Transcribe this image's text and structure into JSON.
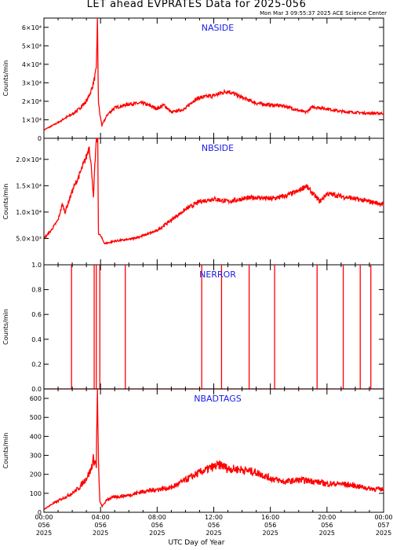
{
  "title": "LET ahead EVPRATES Data for 2025-056",
  "subtitle": "Mon Mar  3 09:55:37 2025 ACE Science Center",
  "colors": {
    "series": "#ff0000",
    "panel_title": "#1a1ae6",
    "axes": "#000000"
  },
  "chart_data": {
    "type": "line",
    "xlabel": "UTC Day of Year",
    "x_range_hours": [
      0,
      24
    ],
    "x_tick_labels": [
      [
        "00:00",
        "056",
        "2025"
      ],
      [
        "04:00",
        "056",
        "2025"
      ],
      [
        "08:00",
        "056",
        "2025"
      ],
      [
        "12:00",
        "056",
        "2025"
      ],
      [
        "16:00",
        "056",
        "2025"
      ],
      [
        "20:00",
        "056",
        "2025"
      ],
      [
        "00:00",
        "057",
        "2025"
      ]
    ],
    "panels": [
      {
        "name": "NASIDE",
        "ylabel": "Counts/min",
        "ylim": [
          0,
          65000
        ],
        "yticks": [
          0,
          10000,
          20000,
          30000,
          40000,
          50000,
          60000
        ],
        "ytick_labels": [
          "0",
          "1×10⁴",
          "2×10⁴",
          "3×10⁴",
          "4×10⁴",
          "5×10⁴",
          "6×10⁴"
        ],
        "points": [
          [
            0,
            4500
          ],
          [
            0.5,
            6500
          ],
          [
            1,
            8500
          ],
          [
            1.5,
            11000
          ],
          [
            2,
            13000
          ],
          [
            2.5,
            16000
          ],
          [
            3,
            20000
          ],
          [
            3.3,
            25000
          ],
          [
            3.5,
            30000
          ],
          [
            3.7,
            37000
          ],
          [
            3.78,
            64000
          ],
          [
            3.85,
            20000
          ],
          [
            3.95,
            13000
          ],
          [
            4.1,
            7000
          ],
          [
            4.5,
            13000
          ],
          [
            5,
            16500
          ],
          [
            6,
            18500
          ],
          [
            7,
            19000
          ],
          [
            8,
            16000
          ],
          [
            8.5,
            18000
          ],
          [
            9,
            14000
          ],
          [
            10,
            16000
          ],
          [
            10.5,
            20000
          ],
          [
            11,
            22000
          ],
          [
            12,
            23000
          ],
          [
            12.5,
            24500
          ],
          [
            13,
            25500
          ],
          [
            14,
            22000
          ],
          [
            15,
            19000
          ],
          [
            16,
            18000
          ],
          [
            17,
            17500
          ],
          [
            18,
            15000
          ],
          [
            18.5,
            14000
          ],
          [
            19,
            17000
          ],
          [
            20,
            16000
          ],
          [
            21,
            14500
          ],
          [
            22,
            14000
          ],
          [
            23,
            13500
          ],
          [
            24,
            13500
          ]
        ]
      },
      {
        "name": "NBSIDE",
        "ylabel": "Counts/min",
        "ylim": [
          0,
          24000
        ],
        "yticks": [
          5000,
          10000,
          15000,
          20000
        ],
        "ytick_labels": [
          "5.0×10³",
          "1.0×10⁴",
          "1.5×10⁴",
          "2.0×10⁴"
        ],
        "points": [
          [
            0,
            5000
          ],
          [
            0.5,
            6500
          ],
          [
            1,
            8500
          ],
          [
            1.3,
            11500
          ],
          [
            1.5,
            10000
          ],
          [
            2,
            14000
          ],
          [
            2.5,
            17000
          ],
          [
            3,
            20500
          ],
          [
            3.2,
            22500
          ],
          [
            3.4,
            17000
          ],
          [
            3.5,
            12500
          ],
          [
            3.6,
            19000
          ],
          [
            3.7,
            23500
          ],
          [
            3.8,
            24000
          ],
          [
            3.85,
            6000
          ],
          [
            4,
            5500
          ],
          [
            4.3,
            4000
          ],
          [
            5,
            4500
          ],
          [
            6,
            4800
          ],
          [
            7,
            5500
          ],
          [
            8,
            6500
          ],
          [
            8.5,
            7500
          ],
          [
            9,
            8500
          ],
          [
            10,
            10500
          ],
          [
            11,
            12000
          ],
          [
            12,
            12500
          ],
          [
            13,
            12000
          ],
          [
            14,
            12500
          ],
          [
            15,
            12800
          ],
          [
            16,
            12500
          ],
          [
            17,
            13000
          ],
          [
            18,
            14000
          ],
          [
            18.5,
            15000
          ],
          [
            19,
            13500
          ],
          [
            19.5,
            12000
          ],
          [
            20,
            13500
          ],
          [
            21,
            13000
          ],
          [
            22,
            12500
          ],
          [
            23,
            12000
          ],
          [
            24,
            11500
          ]
        ]
      },
      {
        "name": "NERROR",
        "ylabel": "Counts/min",
        "ylim": [
          0,
          1.0
        ],
        "yticks": [
          0,
          0.2,
          0.4,
          0.6,
          0.8,
          1.0
        ],
        "ytick_labels": [
          "0.0",
          "0.2",
          "0.4",
          "0.6",
          "0.8",
          "1.0"
        ],
        "spikes_at_hours": [
          1.95,
          3.55,
          3.7,
          3.95,
          5.75,
          11.15,
          12.55,
          14.5,
          16.3,
          19.3,
          21.15,
          22.35,
          23.1
        ]
      },
      {
        "name": "NBADTAGS",
        "ylabel": "Counts/min",
        "ylim": [
          0,
          650
        ],
        "yticks": [
          0,
          100,
          200,
          300,
          400,
          500,
          600
        ],
        "ytick_labels": [
          "0",
          "100",
          "200",
          "300",
          "400",
          "500",
          "600"
        ],
        "points": [
          [
            0,
            15
          ],
          [
            0.5,
            40
          ],
          [
            1,
            60
          ],
          [
            1.5,
            80
          ],
          [
            2,
            100
          ],
          [
            2.5,
            130
          ],
          [
            3,
            180
          ],
          [
            3.3,
            220
          ],
          [
            3.5,
            280
          ],
          [
            3.7,
            250
          ],
          [
            3.78,
            640
          ],
          [
            3.85,
            260
          ],
          [
            3.95,
            60
          ],
          [
            4.1,
            30
          ],
          [
            4.5,
            70
          ],
          [
            5,
            80
          ],
          [
            6,
            90
          ],
          [
            7,
            110
          ],
          [
            8,
            120
          ],
          [
            9,
            130
          ],
          [
            10,
            170
          ],
          [
            11,
            210
          ],
          [
            12,
            240
          ],
          [
            12.5,
            250
          ],
          [
            13,
            230
          ],
          [
            14,
            225
          ],
          [
            15,
            210
          ],
          [
            16,
            180
          ],
          [
            17,
            160
          ],
          [
            18,
            170
          ],
          [
            19,
            165
          ],
          [
            20,
            150
          ],
          [
            21,
            150
          ],
          [
            22,
            140
          ],
          [
            23,
            125
          ],
          [
            24,
            120
          ]
        ]
      }
    ]
  }
}
